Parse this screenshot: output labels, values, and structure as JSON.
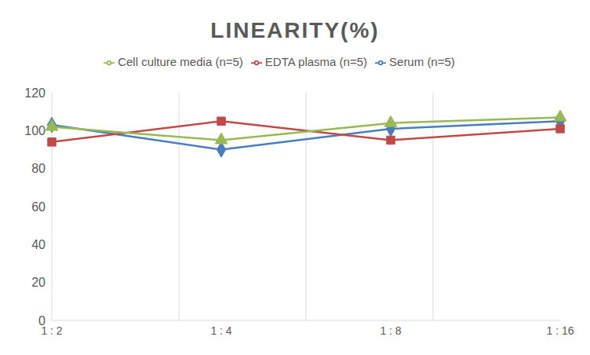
{
  "chart_data": {
    "type": "line",
    "title": "LINEARITY(%)",
    "categories": [
      "1 : 2",
      "1 : 4",
      "1 : 8",
      "1 : 16"
    ],
    "series": [
      {
        "name": "Serum (n=5)",
        "color": "#4a7ebb",
        "marker": "diamond",
        "values": [
          103,
          90,
          101,
          105
        ]
      },
      {
        "name": "EDTA plasma (n=5)",
        "color": "#be4b48",
        "marker": "square",
        "values": [
          94,
          105,
          95,
          101
        ]
      },
      {
        "name": "Cell culture media (n=5)",
        "color": "#98b954",
        "marker": "triangle",
        "values": [
          102,
          95,
          104,
          107
        ]
      }
    ],
    "ylim": [
      0,
      120
    ],
    "yticks": [
      0,
      20,
      40,
      60,
      80,
      100,
      120
    ],
    "grid": true,
    "legend": "top"
  }
}
